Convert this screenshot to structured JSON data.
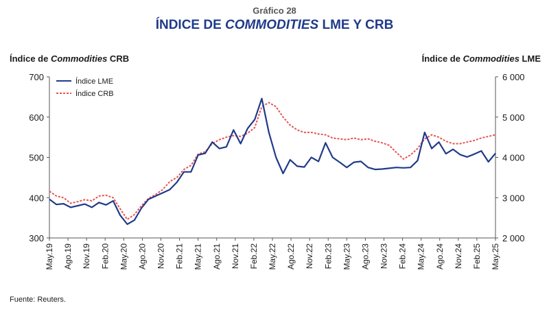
{
  "figure": {
    "number_label": "Gráfico 28",
    "title_part1": "ÍNDICE DE ",
    "title_italic": "COMMODITIES",
    "title_part2": " LME Y CRB",
    "source": "Fuente: Reuters."
  },
  "chart_data": {
    "type": "line",
    "left_axis_title_part1": "Índice de ",
    "left_axis_title_italic": "Commodities",
    "left_axis_title_part2": " CRB",
    "right_axis_title_part1": "Índice de ",
    "right_axis_title_italic": "Commodities",
    "right_axis_title_part2": " LME",
    "ylim_left": [
      300,
      700
    ],
    "ylim_right": [
      2000,
      6000
    ],
    "yticks_left": [
      "700",
      "600",
      "500",
      "400",
      "300"
    ],
    "yticks_right": [
      "6 000",
      "5 000",
      "4 000",
      "3 000",
      "2 000"
    ],
    "xticks": [
      "May.19",
      "Ago.19",
      "Nov.19",
      "Feb.20",
      "May.20",
      "Ago.20",
      "Nov.20",
      "Feb.21",
      "May.21",
      "Ago.21",
      "Nov.21",
      "Feb.22",
      "May.22",
      "Ago.22",
      "Nov.22",
      "Feb.23",
      "May.23",
      "Ago.23",
      "Nov.23",
      "Feb.24",
      "May.24",
      "Ago.24",
      "Nov.24",
      "Feb.25",
      "May.25"
    ],
    "legend_position": "top-left",
    "series": [
      {
        "name": "Índice LME",
        "axis": "right",
        "color": "#1f3a8a",
        "style": "solid",
        "values": [
          2960,
          2830,
          2850,
          2760,
          2800,
          2840,
          2760,
          2880,
          2820,
          2920,
          2560,
          2340,
          2440,
          2740,
          2960,
          3040,
          3120,
          3200,
          3380,
          3640,
          3640,
          4060,
          4100,
          4380,
          4220,
          4260,
          4680,
          4340,
          4720,
          4940,
          5460,
          4620,
          4000,
          3600,
          3940,
          3780,
          3760,
          4000,
          3900,
          4360,
          4000,
          3880,
          3750,
          3880,
          3900,
          3750,
          3700,
          3710,
          3730,
          3750,
          3740,
          3750,
          3920,
          4620,
          4220,
          4380,
          4090,
          4200,
          4070,
          4010,
          4080,
          4160,
          3890,
          4100
        ]
      },
      {
        "name": "Índice CRB",
        "axis": "left",
        "color": "#e8514f",
        "style": "dashed",
        "values": [
          416,
          404,
          400,
          386,
          390,
          395,
          392,
          404,
          406,
          400,
          372,
          346,
          358,
          380,
          398,
          408,
          420,
          440,
          450,
          470,
          480,
          508,
          514,
          534,
          544,
          550,
          554,
          552,
          560,
          574,
          626,
          636,
          626,
          600,
          580,
          568,
          562,
          562,
          558,
          556,
          548,
          546,
          544,
          548,
          544,
          546,
          540,
          536,
          530,
          512,
          496,
          506,
          522,
          546,
          556,
          550,
          540,
          534,
          534,
          538,
          542,
          548,
          552,
          556
        ]
      }
    ]
  }
}
